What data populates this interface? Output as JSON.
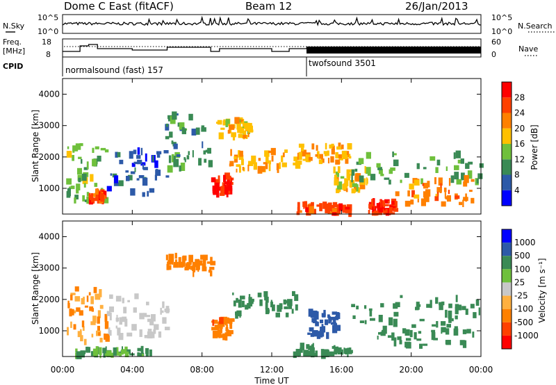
{
  "header": {
    "station": "Dome C East (fitACF)",
    "beam": "Beam 12",
    "date": "26/Jan/2013"
  },
  "top_panels": {
    "nsky_label": "N.Sky",
    "nsky_ticks": [
      "10^5",
      "10^0"
    ],
    "nsearch_label": "N.Search",
    "nsearch_ticks": [
      "10^5",
      "10^0"
    ],
    "freq_label": "Freq.",
    "freq_unit": "[MHz]",
    "freq_ticks": [
      "18",
      "8"
    ],
    "nave_label": "Nave",
    "nave_ticks": [
      "60",
      "0"
    ],
    "cpid_label": "CPID",
    "cpid_modes": [
      {
        "name": "normalsound (fast) 157",
        "start_hour": 0
      },
      {
        "name": "twofsound 3501",
        "start_hour": 14
      }
    ]
  },
  "colors": {
    "power_scale": [
      "#0000ff",
      "#2d5aa8",
      "#3a8a55",
      "#6fc03c",
      "#ffc000",
      "#ff8000",
      "#ff4000",
      "#ff0000"
    ],
    "velocity_scale": [
      "#ff0000",
      "#ff4000",
      "#ff8000",
      "#ffb040",
      "#c8c8c8",
      "#6fc03c",
      "#3a8a55",
      "#2d5aa8",
      "#0000ff"
    ]
  },
  "chart_data": [
    {
      "type": "heatmap",
      "name": "power",
      "xlabel": "",
      "ylabel": "Slant Range [km]",
      "xlim_hours": [
        0,
        24
      ],
      "ylim_km": [
        180,
        4500
      ],
      "yticks": [
        1000,
        2000,
        3000,
        4000
      ],
      "colorbar": {
        "label": "Power [dB]",
        "ticks": [
          4,
          8,
          12,
          16,
          20,
          24,
          28
        ],
        "range": [
          0,
          32
        ]
      },
      "echo_regions": [
        {
          "t0": 0.2,
          "t1": 2.5,
          "r0": 600,
          "r1": 2400,
          "value": 14
        },
        {
          "t0": 1.5,
          "t1": 2.3,
          "r0": 600,
          "r1": 900,
          "value": 26
        },
        {
          "t0": 2.5,
          "t1": 6.0,
          "r0": 800,
          "r1": 2200,
          "value": 6
        },
        {
          "t0": 5.8,
          "t1": 8.5,
          "r0": 1600,
          "r1": 3400,
          "value": 10
        },
        {
          "t0": 8.5,
          "t1": 9.6,
          "r0": 800,
          "r1": 1400,
          "value": 28
        },
        {
          "t0": 8.8,
          "t1": 10.8,
          "r0": 2600,
          "r1": 3200,
          "value": 18
        },
        {
          "t0": 9.5,
          "t1": 13.5,
          "r0": 1500,
          "r1": 2200,
          "value": 20
        },
        {
          "t0": 13.2,
          "t1": 16.5,
          "r0": 200,
          "r1": 500,
          "value": 26
        },
        {
          "t0": 13.5,
          "t1": 16.5,
          "r0": 1800,
          "r1": 2400,
          "value": 20
        },
        {
          "t0": 15.5,
          "t1": 17.5,
          "r0": 900,
          "r1": 1600,
          "value": 18
        },
        {
          "t0": 17.5,
          "t1": 19.0,
          "r0": 200,
          "r1": 600,
          "value": 28
        },
        {
          "t0": 16.5,
          "t1": 24.0,
          "r0": 1200,
          "r1": 2100,
          "value": 12
        },
        {
          "t0": 19.0,
          "t1": 23.5,
          "r0": 500,
          "r1": 1300,
          "value": 22
        }
      ]
    },
    {
      "type": "heatmap",
      "name": "velocity",
      "xlabel": "Time UT",
      "ylabel": "Slant Range [km]",
      "xlim_hours": [
        0,
        24
      ],
      "ylim_km": [
        180,
        4500
      ],
      "xticks": [
        "00:00",
        "04:00",
        "08:00",
        "12:00",
        "16:00",
        "20:00",
        "00:00"
      ],
      "yticks": [
        1000,
        2000,
        3000,
        4000
      ],
      "colorbar": {
        "label": "Velocity [m s⁻¹]",
        "ticks": [
          "1000",
          "500",
          "100",
          "25",
          "-25",
          "-100",
          "-500",
          "-1000"
        ]
      },
      "echo_regions": [
        {
          "t0": 0.2,
          "t1": 2.5,
          "r0": 600,
          "r1": 2400,
          "value": -100
        },
        {
          "t0": 0.5,
          "t1": 5.0,
          "r0": 200,
          "r1": 400,
          "value": 100
        },
        {
          "t0": 2.5,
          "t1": 6.0,
          "r0": 800,
          "r1": 2200,
          "value": 0
        },
        {
          "t0": 5.8,
          "t1": 8.5,
          "r0": 2800,
          "r1": 3400,
          "value": -300
        },
        {
          "t0": 8.5,
          "t1": 9.6,
          "r0": 800,
          "r1": 1400,
          "value": -400
        },
        {
          "t0": 9.5,
          "t1": 13.5,
          "r0": 1500,
          "r1": 2200,
          "value": 200
        },
        {
          "t0": 13.2,
          "t1": 16.5,
          "r0": 200,
          "r1": 500,
          "value": 200
        },
        {
          "t0": 14.0,
          "t1": 15.8,
          "r0": 800,
          "r1": 1600,
          "value": 700
        },
        {
          "t0": 16.5,
          "t1": 24.0,
          "r0": 1200,
          "r1": 2100,
          "value": 300
        },
        {
          "t0": 18.0,
          "t1": 23.5,
          "r0": 500,
          "r1": 1200,
          "value": 150
        }
      ]
    }
  ]
}
